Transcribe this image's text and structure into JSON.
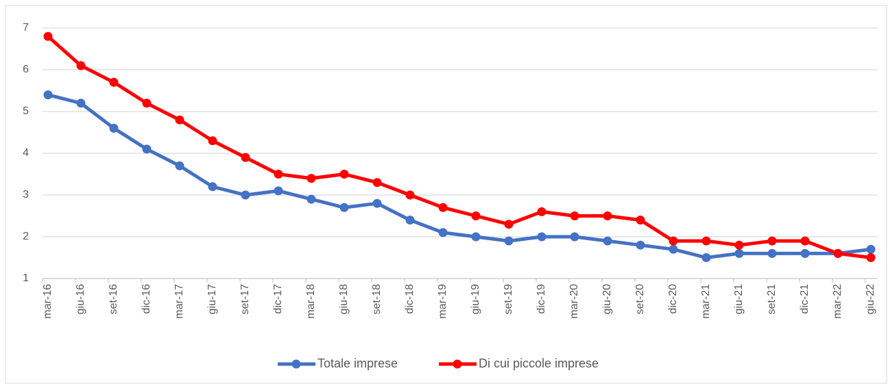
{
  "chart_data": {
    "type": "line",
    "categories": [
      "mar-16",
      "giu-16",
      "set-16",
      "dic-16",
      "mar-17",
      "giu-17",
      "set-17",
      "dic-17",
      "mar-18",
      "giu-18",
      "set-18",
      "dic-18",
      "mar-19",
      "giu-19",
      "set-19",
      "dic-19",
      "mar-20",
      "giu-20",
      "set-20",
      "dic-20",
      "mar-21",
      "giu-21",
      "set-21",
      "dic-21",
      "mar-22",
      "giu-22"
    ],
    "series": [
      {
        "name": "Totale imprese",
        "color": "#4472c4",
        "values": [
          5.4,
          5.2,
          4.6,
          4.1,
          3.7,
          3.2,
          3.0,
          3.1,
          2.9,
          2.7,
          2.8,
          2.4,
          2.1,
          2.0,
          1.9,
          2.0,
          2.0,
          1.9,
          1.8,
          1.7,
          1.5,
          1.6,
          1.6,
          1.6,
          1.6,
          1.7
        ]
      },
      {
        "name": "Di cui piccole imprese",
        "color": "#ff0000",
        "values": [
          6.8,
          6.1,
          5.7,
          5.2,
          4.8,
          4.3,
          3.9,
          3.5,
          3.4,
          3.5,
          3.3,
          3.0,
          2.7,
          2.5,
          2.3,
          2.6,
          2.5,
          2.5,
          2.4,
          1.9,
          1.9,
          1.8,
          1.9,
          1.9,
          1.6,
          1.5
        ]
      }
    ],
    "ylim": [
      1,
      7
    ],
    "yticks": [
      1,
      2,
      3,
      4,
      5,
      6,
      7
    ],
    "grid": true,
    "legend": "bottom"
  }
}
